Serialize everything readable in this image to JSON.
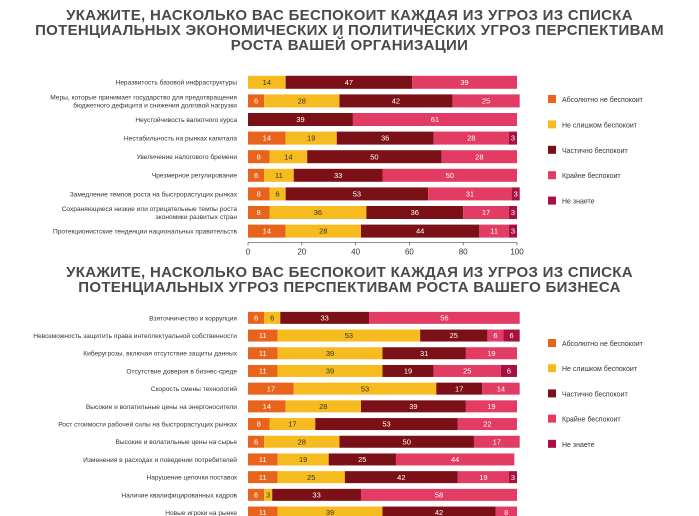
{
  "chart_data": [
    {
      "type": "bar",
      "orientation": "horizontal",
      "stacked": true,
      "title_lines": [
        "УКАЖИТЕ, НАСКОЛЬКО ВАС БЕСПОКОИТ КАЖДАЯ ИЗ УГРОЗ ИЗ СПИСКА",
        "ПОТЕНЦИАЛЬНЫХ ЭКОНОМИЧЕСКИХ И ПОЛИТИЧЕСКИХ УГРОЗ ПЕРСПЕКТИВАМ",
        "РОСТА ВАШЕЙ ОРГАНИЗАЦИИ"
      ],
      "categories": [
        [
          "Неразвитость базовой инфраструктуры"
        ],
        [
          "Меры, которые принимает государство для предотвращения",
          "бюджетного дефицита и снижения долговой нагрузки"
        ],
        [
          "Неустойчивость валютного курса"
        ],
        [
          "Нестабильность на рынках капитала"
        ],
        [
          "Увеличение налогового бремени"
        ],
        [
          "Чрезмерное регулирование"
        ],
        [
          "Замедление темпов роста на быстрорастущих рынках"
        ],
        [
          "Сохраняющиеся низкие или отрицательные темпы роста",
          "экономики развитых стран"
        ],
        [
          "Протекционистские тенденции национальных правительств"
        ]
      ],
      "series": [
        {
          "name": "Абсолютно не беспокоит",
          "color": "#e8641c",
          "values": [
            0,
            6,
            0,
            14,
            8,
            6,
            8,
            8,
            14
          ]
        },
        {
          "name": "Не слишком беспокоит",
          "color": "#f6bb1e",
          "values": [
            14,
            28,
            0,
            19,
            14,
            11,
            6,
            36,
            28
          ]
        },
        {
          "name": "Частично беспокоит",
          "color": "#7b1116",
          "values": [
            47,
            42,
            39,
            36,
            50,
            33,
            53,
            36,
            44
          ]
        },
        {
          "name": "Крайне беспокоит",
          "color": "#e33c64",
          "values": [
            39,
            25,
            61,
            28,
            28,
            50,
            31,
            17,
            11
          ]
        },
        {
          "name": "Не знаете",
          "color": "#a8113f",
          "values": [
            0,
            0,
            0,
            3,
            0,
            0,
            3,
            3,
            3
          ]
        }
      ],
      "xlim": [
        0,
        100
      ],
      "xticks": [
        "0",
        "20",
        "40",
        "60",
        "80",
        "100"
      ],
      "legend_position": "right"
    },
    {
      "type": "bar",
      "orientation": "horizontal",
      "stacked": true,
      "title_lines": [
        "УКАЖИТЕ, НАСКОЛЬКО ВАС БЕСПОКОИТ КАЖДАЯ ИЗ УГРОЗ ИЗ СПИСКА",
        "ПОТЕНЦИАЛЬНЫХ УГРОЗ ПЕРСПЕКТИВАМ РОСТА ВАШЕГО БИЗНЕСА"
      ],
      "categories": [
        [
          "Взяточничество и коррупция"
        ],
        [
          "Невозможность защитить права интеллектуальной собственности"
        ],
        [
          "Киберугрозы, включая отсутствие защиты данных"
        ],
        [
          "Отсутствие доверия в бизнес-среде"
        ],
        [
          "Скорость смены технологий"
        ],
        [
          "Высокие и волатильные цены на энергоносители"
        ],
        [
          "Рост стоимости рабочей силы на быстрорастущих рынках"
        ],
        [
          "Высокие и волатильные цены на сырье"
        ],
        [
          "Изменения в расходах и поведении потребителей"
        ],
        [
          "Нарушение цепочки поставок"
        ],
        [
          "Наличие квалифицированных кадров"
        ],
        [
          "Новые игроки на рынке"
        ]
      ],
      "series": [
        {
          "name": "Абсолютно не беспокоит",
          "color": "#e8641c",
          "values": [
            6,
            11,
            11,
            11,
            17,
            14,
            8,
            6,
            11,
            11,
            6,
            11
          ]
        },
        {
          "name": "Не слишком беспокоит",
          "color": "#f6bb1e",
          "values": [
            6,
            53,
            39,
            39,
            53,
            28,
            17,
            28,
            19,
            25,
            3,
            39
          ]
        },
        {
          "name": "Частично беспокоит",
          "color": "#7b1116",
          "values": [
            33,
            25,
            31,
            19,
            17,
            39,
            53,
            50,
            25,
            42,
            33,
            42
          ]
        },
        {
          "name": "Крайне беспокоит",
          "color": "#e33c64",
          "values": [
            56,
            6,
            19,
            25,
            14,
            19,
            22,
            17,
            44,
            19,
            58,
            8
          ]
        },
        {
          "name": "Не знаете",
          "color": "#a8113f",
          "values": [
            0,
            6,
            0,
            6,
            0,
            0,
            0,
            0,
            0,
            3,
            0,
            0
          ]
        }
      ],
      "xlim": [
        0,
        100
      ],
      "xticks": [],
      "legend_position": "right"
    }
  ]
}
